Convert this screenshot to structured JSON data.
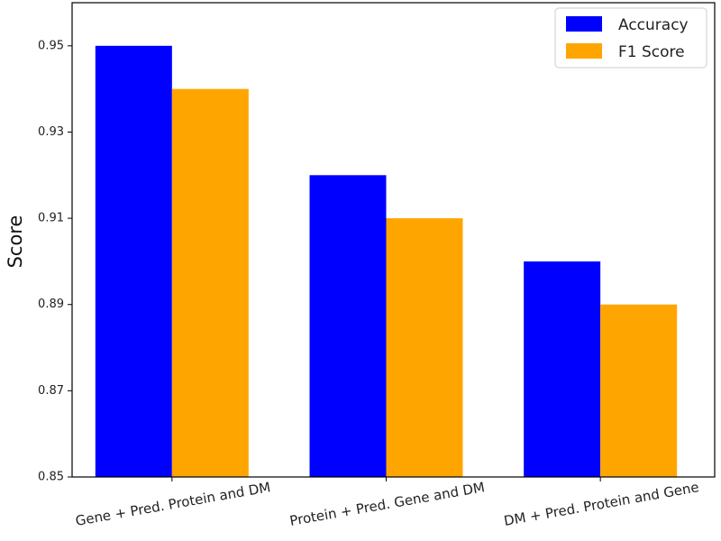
{
  "chart_data": {
    "type": "bar",
    "title": "",
    "xlabel": "",
    "ylabel": "Score",
    "ylim": [
      0.85,
      0.96
    ],
    "yticks": [
      "0.85",
      "0.87",
      "0.89",
      "0.91",
      "0.93",
      "0.95"
    ],
    "categories": [
      "Gene + Pred. Protein and DM",
      "Protein + Pred. Gene and DM",
      "DM + Pred. Protein and Gene"
    ],
    "series": [
      {
        "name": "Accuracy",
        "color": "#0000ff",
        "values": [
          0.95,
          0.92,
          0.9
        ]
      },
      {
        "name": "F1 Score",
        "color": "#ffa500",
        "values": [
          0.94,
          0.91,
          0.89
        ]
      }
    ],
    "grid": false,
    "legend": "top-right",
    "xtick_rotation_deg": -10
  }
}
